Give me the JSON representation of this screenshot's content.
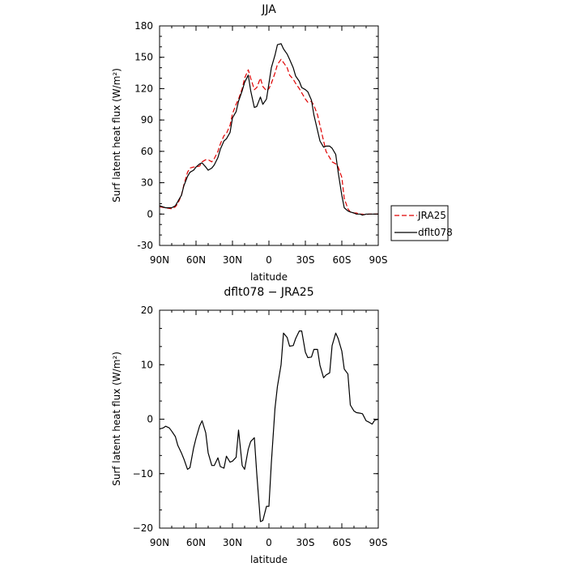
{
  "chart_data": [
    {
      "type": "line",
      "title": "JJA",
      "xlabel": "latitude",
      "ylabel": "Surf latent heat flux (W/m²)",
      "xlim": [
        90,
        -90
      ],
      "ylim": [
        -30,
        180
      ],
      "xticks": [
        90,
        60,
        30,
        0,
        -30,
        -60,
        -90
      ],
      "xtick_labels": [
        "90N",
        "60N",
        "30N",
        "0",
        "30S",
        "60S",
        "90S"
      ],
      "yticks": [
        -30,
        0,
        30,
        60,
        90,
        120,
        150,
        180
      ],
      "ytick_labels": [
        "-30",
        "0",
        "30",
        "60",
        "90",
        "120",
        "150",
        "180"
      ],
      "legend": "right",
      "series": [
        {
          "name": "JRA25",
          "color": "#e00000",
          "style": "dashed",
          "x": [
            90,
            85,
            80,
            77,
            75,
            72,
            70,
            67,
            65,
            62,
            60,
            57,
            55,
            52,
            50,
            47,
            45,
            42,
            40,
            37,
            35,
            32,
            30,
            27,
            25,
            22,
            20,
            17,
            15,
            12,
            10,
            7,
            5,
            2,
            0,
            -2,
            -5,
            -7,
            -10,
            -12,
            -15,
            -17,
            -20,
            -22,
            -25,
            -27,
            -30,
            -32,
            -35,
            -37,
            -40,
            -42,
            -45,
            -47,
            -50,
            -52,
            -55,
            -57,
            -60,
            -62,
            -65,
            -67,
            -70,
            -72,
            -75,
            -77,
            -80,
            -82,
            -85,
            -87,
            -90
          ],
          "y": [
            7,
            6,
            5,
            7,
            10,
            18,
            28,
            40,
            44,
            45,
            45,
            46,
            50,
            52,
            52,
            50,
            53,
            60,
            67,
            75,
            77,
            85,
            96,
            105,
            110,
            120,
            130,
            138,
            130,
            119,
            121,
            130,
            122,
            118,
            120,
            125,
            135,
            143,
            148,
            145,
            140,
            133,
            129,
            125,
            120,
            116,
            110,
            107,
            108,
            104,
            95,
            85,
            70,
            60,
            54,
            50,
            48,
            45,
            35,
            15,
            5,
            2,
            1,
            1,
            0,
            0,
            -1,
            0,
            0,
            0,
            0
          ]
        },
        {
          "name": "dflt078",
          "color": "#000000",
          "style": "solid",
          "x": [
            90,
            85,
            80,
            77,
            75,
            72,
            70,
            67,
            65,
            62,
            60,
            57,
            55,
            52,
            50,
            47,
            45,
            42,
            40,
            37,
            35,
            32,
            30,
            27,
            25,
            22,
            20,
            17,
            15,
            12,
            10,
            7,
            5,
            2,
            0,
            -2,
            -5,
            -7,
            -10,
            -12,
            -15,
            -17,
            -20,
            -22,
            -25,
            -27,
            -30,
            -32,
            -35,
            -37,
            -40,
            -42,
            -45,
            -47,
            -50,
            -52,
            -55,
            -57,
            -60,
            -62,
            -65,
            -67,
            -70,
            -72,
            -75,
            -77,
            -80,
            -82,
            -85,
            -87,
            -90
          ],
          "y": [
            8,
            6,
            6,
            8,
            12,
            18,
            27,
            36,
            40,
            42,
            45,
            48,
            49,
            45,
            42,
            44,
            47,
            54,
            62,
            70,
            72,
            78,
            92,
            98,
            108,
            118,
            126,
            133,
            118,
            102,
            103,
            112,
            105,
            110,
            125,
            140,
            152,
            162,
            163,
            158,
            153,
            148,
            140,
            132,
            127,
            121,
            119,
            117,
            109,
            95,
            80,
            70,
            64,
            65,
            65,
            63,
            57,
            40,
            18,
            6,
            3,
            2,
            1,
            0,
            0,
            -1,
            0,
            0,
            0,
            0,
            0
          ]
        }
      ]
    },
    {
      "type": "line",
      "title": "dflt078 − JRA25",
      "xlabel": "latitude",
      "ylabel": "Surf latent heat flux (W/m²)",
      "xlim": [
        90,
        -90
      ],
      "ylim": [
        -20,
        20
      ],
      "xticks": [
        90,
        60,
        30,
        0,
        -30,
        -60,
        -90
      ],
      "xtick_labels": [
        "90N",
        "60N",
        "30N",
        "0",
        "30S",
        "60S",
        "90S"
      ],
      "yticks": [
        -20,
        -10,
        0,
        10,
        20
      ],
      "ytick_labels": [
        "−20",
        "−10",
        "0",
        "10",
        "20"
      ],
      "series": [
        {
          "color": "#000000",
          "style": "solid",
          "x": [
            90,
            87,
            85,
            82,
            80,
            77,
            75,
            72,
            70,
            67,
            65,
            62,
            60,
            57,
            55,
            52,
            50,
            47,
            45,
            42,
            40,
            37,
            35,
            32,
            30,
            27,
            25,
            22,
            20,
            17,
            15,
            12,
            10,
            7,
            5,
            2,
            0,
            -2,
            -5,
            -7,
            -10,
            -12,
            -15,
            -17,
            -20,
            -22,
            -25,
            -27,
            -30,
            -32,
            -35,
            -37,
            -40,
            -42,
            -45,
            -47,
            -50,
            -52,
            -55,
            -57,
            -60,
            -62,
            -65,
            -67,
            -70,
            -72,
            -75,
            -77,
            -80,
            -82,
            -85,
            -87,
            -90
          ],
          "y": [
            -1.8,
            -1.6,
            -1.3,
            -1.6,
            -2.2,
            -3.2,
            -4.8,
            -6.2,
            -7.3,
            -9.2,
            -8.9,
            -5.3,
            -3.5,
            -1.2,
            -0.3,
            -2.5,
            -6.2,
            -8.5,
            -8.5,
            -7.1,
            -8.7,
            -9.0,
            -6.8,
            -7.9,
            -7.7,
            -7.0,
            -2.0,
            -8.5,
            -9.2,
            -5.5,
            -4.1,
            -3.4,
            -10.0,
            -18.8,
            -18.6,
            -16.0,
            -16.0,
            -8.0,
            2.0,
            6.0,
            10.0,
            15.8,
            15.0,
            13.4,
            13.5,
            14.8,
            16.2,
            16.2,
            12.3,
            11.3,
            11.4,
            12.8,
            12.8,
            9.9,
            7.6,
            8.1,
            8.5,
            13.5,
            15.8,
            14.8,
            12.5,
            9.2,
            8.3,
            2.6,
            1.5,
            1.2,
            1.1,
            1.0,
            -0.3,
            -0.5,
            -0.9,
            -0.2,
            0.0
          ]
        }
      ]
    }
  ]
}
